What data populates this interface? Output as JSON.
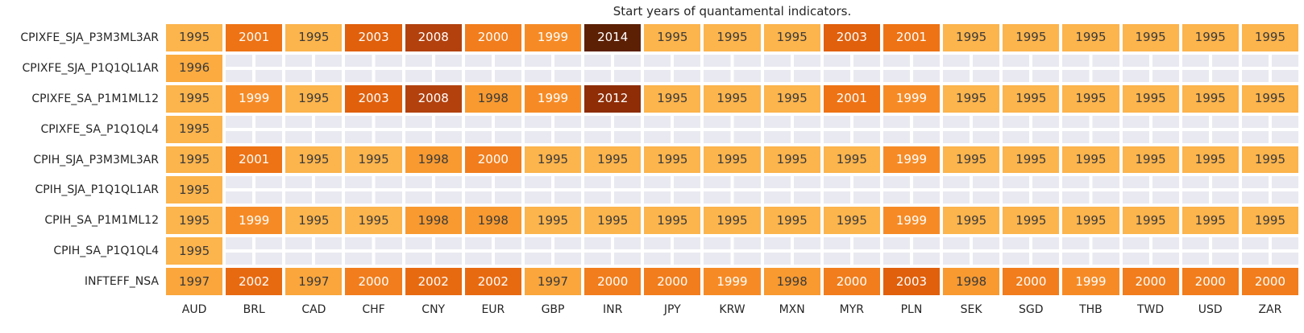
{
  "title": "Start years of quantamental indicators.",
  "chart_data": {
    "type": "heatmap",
    "title": "Start years of quantamental indicators.",
    "columns": [
      "AUD",
      "BRL",
      "CAD",
      "CHF",
      "CNY",
      "EUR",
      "GBP",
      "INR",
      "JPY",
      "KRW",
      "MXN",
      "MYR",
      "PLN",
      "SEK",
      "SGD",
      "THB",
      "TWD",
      "USD",
      "ZAR"
    ],
    "rows": [
      "CPIXFE_SJA_P3M3ML3AR",
      "CPIXFE_SJA_P1Q1QL1AR",
      "CPIXFE_SA_P1M1ML12",
      "CPIXFE_SA_P1Q1QL4",
      "CPIH_SJA_P3M3ML3AR",
      "CPIH_SJA_P1Q1QL1AR",
      "CPIH_SA_P1M1ML12",
      "CPIH_SA_P1Q1QL4",
      "INFTEFF_NSA"
    ],
    "values": [
      [
        1995,
        2001,
        1995,
        2003,
        2008,
        2000,
        1999,
        2014,
        1995,
        1995,
        1995,
        2003,
        2001,
        1995,
        1995,
        1995,
        1995,
        1995,
        1995
      ],
      [
        1996,
        null,
        null,
        null,
        null,
        null,
        null,
        null,
        null,
        null,
        null,
        null,
        null,
        null,
        null,
        null,
        null,
        null,
        null
      ],
      [
        1995,
        1999,
        1995,
        2003,
        2008,
        1998,
        1999,
        2012,
        1995,
        1995,
        1995,
        2001,
        1999,
        1995,
        1995,
        1995,
        1995,
        1995,
        1995
      ],
      [
        1995,
        null,
        null,
        null,
        null,
        null,
        null,
        null,
        null,
        null,
        null,
        null,
        null,
        null,
        null,
        null,
        null,
        null,
        null
      ],
      [
        1995,
        2001,
        1995,
        1995,
        1998,
        2000,
        1995,
        1995,
        1995,
        1995,
        1995,
        1995,
        1999,
        1995,
        1995,
        1995,
        1995,
        1995,
        1995
      ],
      [
        1995,
        null,
        null,
        null,
        null,
        null,
        null,
        null,
        null,
        null,
        null,
        null,
        null,
        null,
        null,
        null,
        null,
        null,
        null
      ],
      [
        1995,
        1999,
        1995,
        1995,
        1998,
        1998,
        1995,
        1995,
        1995,
        1995,
        1995,
        1995,
        1999,
        1995,
        1995,
        1995,
        1995,
        1995,
        1995
      ],
      [
        1995,
        null,
        null,
        null,
        null,
        null,
        null,
        null,
        null,
        null,
        null,
        null,
        null,
        null,
        null,
        null,
        null,
        null,
        null
      ],
      [
        1997,
        2002,
        1997,
        2000,
        2002,
        2002,
        1997,
        2000,
        2000,
        1999,
        1998,
        2000,
        2003,
        1998,
        2000,
        1999,
        2000,
        2000,
        2000
      ]
    ],
    "value_range": [
      1995,
      2014
    ],
    "colormap_name": "sequential-orange-brown",
    "colormap": {
      "1995": {
        "bg": "#fcb44c",
        "text": "#3a3a3a"
      },
      "1996": {
        "bg": "#fbab40",
        "text": "#3a3a3a"
      },
      "1997": {
        "bg": "#faa63c",
        "text": "#3a3a3a"
      },
      "1998": {
        "bg": "#f89a30",
        "text": "#3a3a3a"
      },
      "1999": {
        "bg": "#f68b26",
        "text": "#ffffff"
      },
      "2000": {
        "bg": "#f17d1c",
        "text": "#ffffff"
      },
      "2001": {
        "bg": "#ee7314",
        "text": "#ffffff"
      },
      "2002": {
        "bg": "#e86a10",
        "text": "#ffffff"
      },
      "2003": {
        "bg": "#e0600c",
        "text": "#ffffff"
      },
      "2008": {
        "bg": "#b2410e",
        "text": "#ffffff"
      },
      "2012": {
        "bg": "#8e2d06",
        "text": "#ffffff"
      },
      "2014": {
        "bg": "#5c2005",
        "text": "#ffffff"
      }
    },
    "empty_cell_color": "#e9e9f1",
    "grid_line_color": "#ffffff",
    "legend": "none",
    "grid": "on"
  }
}
